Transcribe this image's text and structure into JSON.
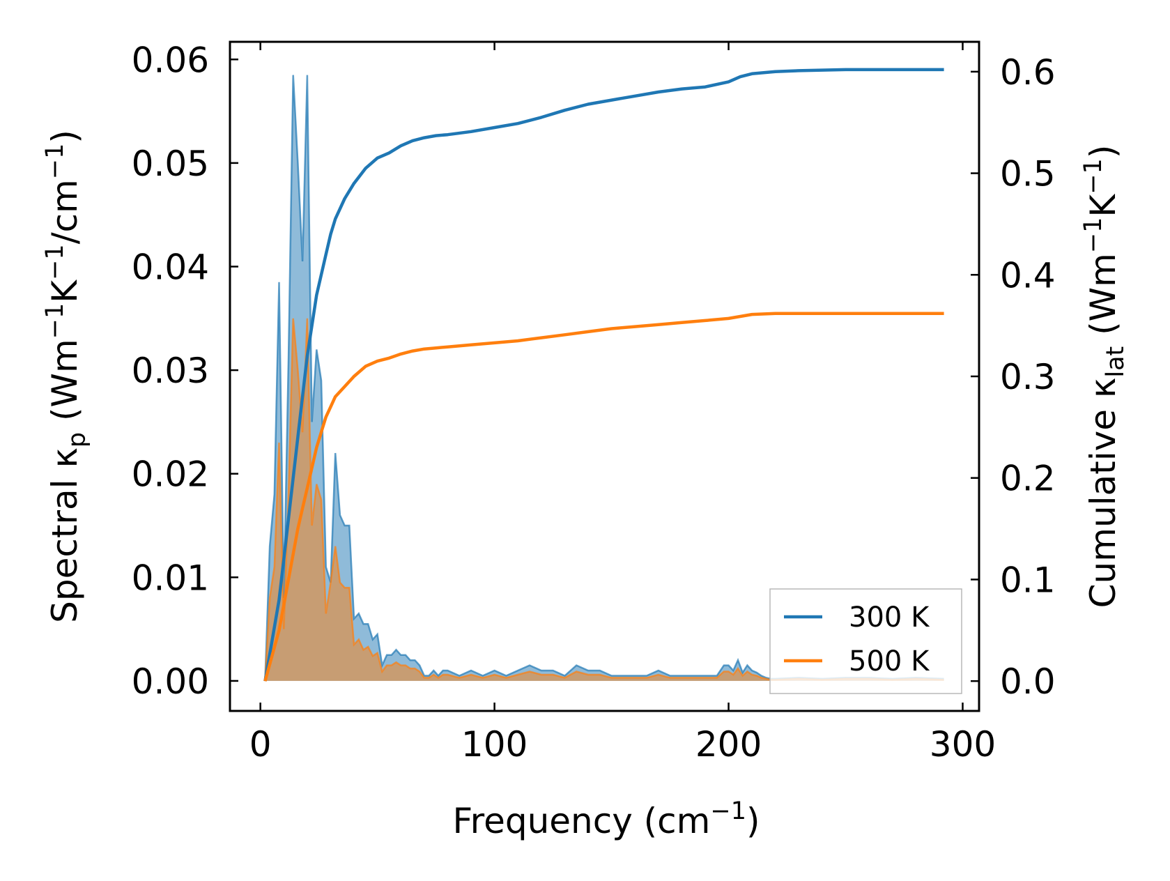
{
  "chart_data": {
    "type": "line",
    "title": "",
    "xlabel": "Frequency (cm⁻¹)",
    "ylabel_left": "Spectral κp (Wm⁻¹K⁻¹/cm⁻¹)",
    "ylabel_right": "Cumulative κlat (Wm⁻¹K⁻¹)",
    "xlim": [
      -13,
      307
    ],
    "ylim_left": [
      -0.0029,
      0.0617
    ],
    "ylim_right": [
      -0.0294,
      0.6294
    ],
    "x_ticks": [
      "0",
      "100",
      "200",
      "300"
    ],
    "y_ticks_left": [
      "0.00",
      "0.01",
      "0.02",
      "0.03",
      "0.04",
      "0.05",
      "0.06"
    ],
    "y_ticks_right": [
      "0.0",
      "0.1",
      "0.2",
      "0.3",
      "0.4",
      "0.5",
      "0.6"
    ],
    "grid": false,
    "legend_position": "bottom-right",
    "colors": {
      "t300": "#1f77b4",
      "t500": "#ff7f0e"
    },
    "series": [
      {
        "name": "300 K",
        "axis": "right",
        "kind": "cumulative",
        "x": [
          2,
          5,
          8,
          10,
          12,
          14,
          16,
          18,
          20,
          22,
          24,
          26,
          28,
          30,
          32,
          34,
          36,
          40,
          45,
          50,
          55,
          60,
          65,
          70,
          75,
          80,
          90,
          100,
          110,
          120,
          130,
          140,
          150,
          160,
          170,
          180,
          190,
          200,
          205,
          210,
          220,
          230,
          250,
          270,
          292
        ],
        "y": [
          0,
          0.04,
          0.08,
          0.12,
          0.16,
          0.2,
          0.24,
          0.28,
          0.32,
          0.35,
          0.38,
          0.4,
          0.42,
          0.44,
          0.455,
          0.465,
          0.475,
          0.49,
          0.505,
          0.515,
          0.52,
          0.527,
          0.532,
          0.535,
          0.537,
          0.538,
          0.541,
          0.545,
          0.549,
          0.555,
          0.562,
          0.568,
          0.572,
          0.576,
          0.58,
          0.583,
          0.585,
          0.59,
          0.595,
          0.598,
          0.6,
          0.601,
          0.602,
          0.602,
          0.602
        ]
      },
      {
        "name": "500 K",
        "axis": "right",
        "kind": "cumulative",
        "x": [
          2,
          5,
          8,
          10,
          12,
          14,
          16,
          18,
          20,
          22,
          24,
          26,
          28,
          30,
          32,
          34,
          36,
          40,
          45,
          50,
          55,
          60,
          65,
          70,
          75,
          80,
          90,
          100,
          110,
          120,
          130,
          140,
          150,
          160,
          170,
          180,
          190,
          200,
          205,
          210,
          220,
          230,
          250,
          270,
          292
        ],
        "y": [
          0,
          0.025,
          0.05,
          0.075,
          0.1,
          0.125,
          0.15,
          0.17,
          0.19,
          0.21,
          0.23,
          0.245,
          0.26,
          0.27,
          0.28,
          0.285,
          0.29,
          0.3,
          0.31,
          0.315,
          0.318,
          0.322,
          0.325,
          0.327,
          0.328,
          0.329,
          0.331,
          0.333,
          0.335,
          0.338,
          0.341,
          0.344,
          0.347,
          0.349,
          0.351,
          0.353,
          0.355,
          0.357,
          0.359,
          0.361,
          0.362,
          0.362,
          0.362,
          0.362,
          0.362
        ]
      },
      {
        "name": "300 K",
        "axis": "left",
        "kind": "spectral",
        "x": [
          2,
          4,
          6,
          8,
          10,
          12,
          14,
          16,
          18,
          20,
          22,
          24,
          26,
          28,
          30,
          32,
          34,
          36,
          38,
          40,
          42,
          44,
          46,
          48,
          50,
          52,
          54,
          56,
          58,
          60,
          62,
          64,
          66,
          68,
          70,
          72,
          74,
          76,
          78,
          80,
          85,
          90,
          95,
          100,
          105,
          110,
          115,
          120,
          125,
          130,
          135,
          140,
          145,
          150,
          155,
          160,
          165,
          170,
          175,
          180,
          185,
          190,
          195,
          198,
          200,
          202,
          204,
          206,
          208,
          210,
          212,
          214,
          216,
          218,
          220,
          230,
          240,
          250,
          260,
          270,
          280,
          292
        ],
        "y": [
          0,
          0.013,
          0.018,
          0.0385,
          0.008,
          0.031,
          0.0585,
          0.05,
          0.0405,
          0.0585,
          0.025,
          0.032,
          0.029,
          0.011,
          0.0095,
          0.022,
          0.016,
          0.015,
          0.015,
          0.006,
          0.0065,
          0.0055,
          0.0055,
          0.004,
          0.0045,
          0.0015,
          0.0025,
          0.0025,
          0.003,
          0.0025,
          0.0025,
          0.002,
          0.002,
          0.0015,
          0.0005,
          0.0005,
          0.001,
          0.0005,
          0.001,
          0.001,
          0.0005,
          0.001,
          0.0005,
          0.001,
          0.0005,
          0.001,
          0.0015,
          0.001,
          0.001,
          0.0005,
          0.0015,
          0.001,
          0.001,
          0.0005,
          0.0005,
          0.0005,
          0.0005,
          0.001,
          0.0005,
          0.0005,
          0.0005,
          0.0005,
          0.0005,
          0.0015,
          0.0015,
          0.001,
          0.002,
          0.0008,
          0.0015,
          0.001,
          0.0008,
          0.0005,
          0.0003,
          0.0002,
          0.0002,
          0.0003,
          0.0002,
          0.0003,
          0.0003,
          0.0002,
          0.0003,
          0.0002
        ]
      },
      {
        "name": "500 K",
        "axis": "left",
        "kind": "spectral",
        "x": [
          2,
          4,
          6,
          8,
          10,
          12,
          14,
          16,
          18,
          20,
          22,
          24,
          26,
          28,
          30,
          32,
          34,
          36,
          38,
          40,
          42,
          44,
          46,
          48,
          50,
          52,
          54,
          56,
          58,
          60,
          62,
          64,
          66,
          68,
          70,
          72,
          74,
          76,
          78,
          80,
          85,
          90,
          95,
          100,
          105,
          110,
          115,
          120,
          125,
          130,
          135,
          140,
          145,
          150,
          155,
          160,
          165,
          170,
          175,
          180,
          185,
          190,
          195,
          198,
          200,
          202,
          204,
          206,
          208,
          210,
          212,
          214,
          216,
          218,
          220,
          230,
          240,
          250,
          260,
          270,
          280,
          292
        ],
        "y": [
          0,
          0.008,
          0.011,
          0.023,
          0.005,
          0.018,
          0.035,
          0.03,
          0.024,
          0.035,
          0.015,
          0.019,
          0.0175,
          0.0065,
          0.0095,
          0.013,
          0.0095,
          0.009,
          0.009,
          0.0035,
          0.004,
          0.003,
          0.0033,
          0.0024,
          0.0027,
          0.0009,
          0.0015,
          0.0015,
          0.0018,
          0.0015,
          0.0015,
          0.0012,
          0.0012,
          0.0009,
          0.0003,
          0.0003,
          0.0006,
          0.0003,
          0.0006,
          0.0006,
          0.0003,
          0.0006,
          0.0003,
          0.0006,
          0.0003,
          0.0006,
          0.0009,
          0.0006,
          0.0006,
          0.0003,
          0.0009,
          0.0006,
          0.0006,
          0.0003,
          0.0003,
          0.0003,
          0.0003,
          0.0006,
          0.0003,
          0.0003,
          0.0003,
          0.0003,
          0.0003,
          0.0009,
          0.0009,
          0.0006,
          0.0012,
          0.0005,
          0.0009,
          0.0006,
          0.0005,
          0.0003,
          0.0002,
          0.0001,
          0.0001,
          0.0002,
          0.0001,
          0.0002,
          0.0002,
          0.0001,
          0.0002,
          0.0001
        ]
      }
    ],
    "legend": [
      "300 K",
      "500 K"
    ]
  }
}
